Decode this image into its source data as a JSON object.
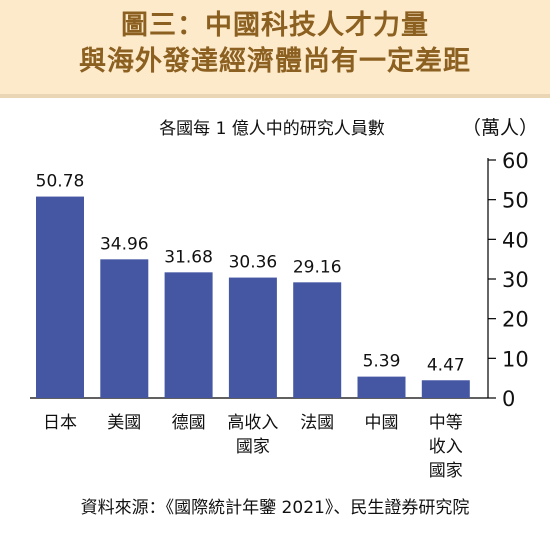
{
  "header": {
    "title_line1": "圖三：中國科技人才力量",
    "title_line2": "與海外發達經濟體尚有一定差距"
  },
  "chart_data": {
    "type": "bar",
    "subtitle": "各國每 1 億人中的研究人員數",
    "unit_label": "（萬人）",
    "categories": [
      "日本",
      "美國",
      "德國",
      "高收入國家",
      "法國",
      "中國",
      "中等收入國家"
    ],
    "category_lines": [
      [
        "日本"
      ],
      [
        "美國"
      ],
      [
        "德國"
      ],
      [
        "高收入",
        "國家"
      ],
      [
        "法國"
      ],
      [
        "中國"
      ],
      [
        "中等",
        "收入",
        "國家"
      ]
    ],
    "values": [
      50.78,
      34.96,
      31.68,
      30.36,
      29.16,
      5.39,
      4.47
    ],
    "value_labels": [
      "50.78",
      "34.96",
      "31.68",
      "30.36",
      "29.16",
      "5.39",
      "4.47"
    ],
    "ylim": [
      0,
      60
    ],
    "yticks": [
      0,
      10,
      20,
      30,
      40,
      50,
      60
    ],
    "y_axis_position": "right",
    "grid": false,
    "bar_color": "#4557a3"
  },
  "source": "資料來源：《國際統計年鑒 2021》、民生證券研究院"
}
